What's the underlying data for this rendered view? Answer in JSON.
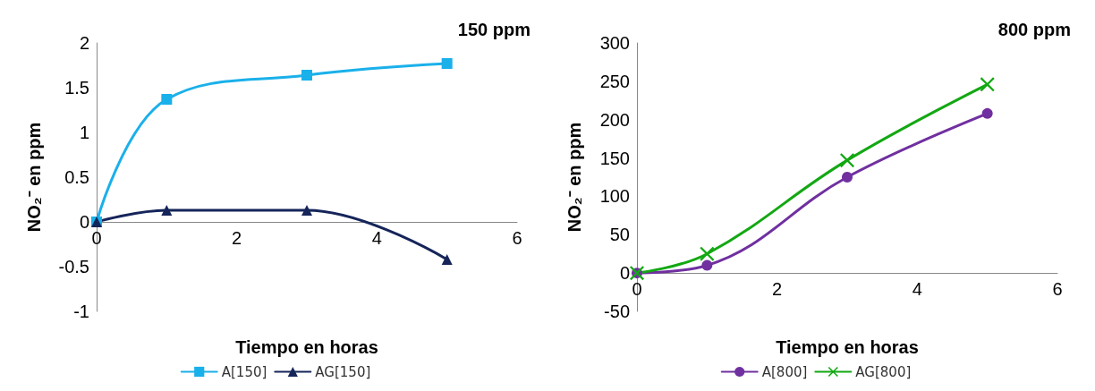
{
  "chart_data": [
    {
      "type": "line",
      "title": "150 ppm",
      "xlabel": "Tiempo en horas",
      "ylabel": "NO₂⁻ en ppm",
      "x": [
        0,
        1,
        3,
        5
      ],
      "series": [
        {
          "name": "A[150]",
          "color": "#1ab0ea",
          "marker": "square",
          "values": [
            0,
            1.37,
            1.64,
            1.77
          ]
        },
        {
          "name": "AG[150]",
          "color": "#15255a",
          "marker": "triangle",
          "values": [
            0,
            0.13,
            0.13,
            -0.42
          ]
        }
      ],
      "xlim": [
        0,
        6
      ],
      "xticks": [
        0,
        2,
        4,
        6
      ],
      "ylim": [
        -1,
        2
      ],
      "yticks": [
        -1,
        -0.5,
        0,
        0.5,
        1,
        1.5,
        2
      ],
      "grid": false,
      "legend": "bottom",
      "line_style": "solid"
    },
    {
      "type": "line",
      "title": "800 ppm",
      "xlabel": "Tiempo en horas",
      "ylabel": "NO₂⁻ en ppm",
      "x": [
        0,
        1,
        3,
        5
      ],
      "series": [
        {
          "name": "A[800]",
          "color": "#7030a0",
          "marker": "circle",
          "values": [
            0,
            10,
            125,
            208
          ]
        },
        {
          "name": "AG[800]",
          "color": "#13a813",
          "marker": "cross",
          "values": [
            0,
            25,
            147,
            246
          ]
        }
      ],
      "xlim": [
        0,
        6
      ],
      "xticks": [
        0,
        2,
        4,
        6
      ],
      "ylim": [
        -50,
        300
      ],
      "yticks": [
        -50,
        0,
        50,
        100,
        150,
        200,
        250,
        300
      ],
      "grid": false,
      "legend": "bottom",
      "line_style": "solid"
    }
  ]
}
